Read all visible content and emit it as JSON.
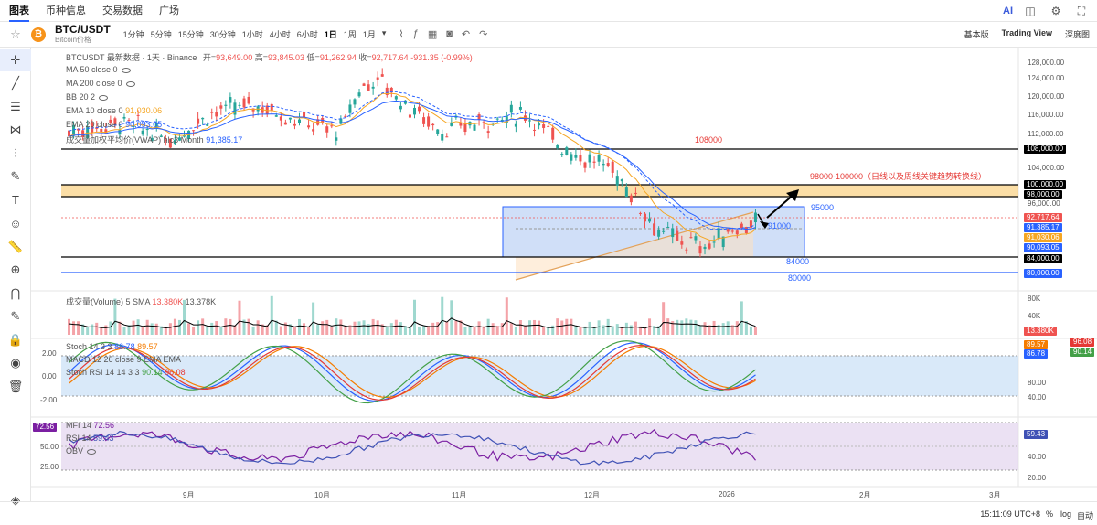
{
  "nav": {
    "tabs": [
      "图表",
      "币种信息",
      "交易数据",
      "广场"
    ],
    "ai_label": "AI"
  },
  "toolbar": {
    "coin_letter": "₿",
    "symbol": "BTC/USDT",
    "subtitle": "Bitcoin价格",
    "intervals": [
      "1分钟",
      "5分钟",
      "15分钟",
      "30分钟",
      "1小时",
      "4小时",
      "6小时",
      "1日",
      "1周",
      "1月"
    ],
    "active_interval": "1日",
    "view_options": [
      "基本版",
      "Trading View",
      "深度图"
    ],
    "active_view": "Trading View"
  },
  "legend": {
    "main": "BTCUSDT 最新数据 · 1天 · Binance",
    "open_label": "开=",
    "open": "93,649.00",
    "high_label": "高=",
    "high": "93,845.03",
    "low_label": "低=",
    "low": "91,262.94",
    "close_label": "收=",
    "close": "92,717.64",
    "change": "-931.35 (-0.99%)",
    "ma50": "MA 50 close 0",
    "ma200": "MA 200 close 0",
    "bb": "BB 20 2",
    "ema1": "EMA 10 close 0",
    "ema1_val": "91,030.06",
    "ema2": "EMA 20 close 0",
    "ema2_val": "90,093.05",
    "vwap": "成交量加权平均价(VWAP) hlc3 Month",
    "vwap_val": "91,385.17",
    "volume": "成交量(Volume) 5 SMA",
    "volume_v1": "13.380K",
    "volume_v2": "13.378K",
    "stoch": "Stoch 14 3 3",
    "stoch_v1": "86.78",
    "stoch_v2": "89.57",
    "macd": "MACD 12 26 close 9 EMA EMA",
    "stochrsi": "Stoch RSI 14 14 3 3",
    "stochrsi_v1": "90.14",
    "stochrsi_v2": "96.08",
    "mfi": "MFI 14",
    "mfi_val": "72.56",
    "rsi": "RSI 14",
    "rsi_val": "59.43",
    "obv": "OBV"
  },
  "annotations": {
    "l108": "108000",
    "l98": "98000-100000（日线以及周线关键趋势转换线）",
    "l95": "95000",
    "l91": "91000",
    "l84": "84000",
    "l80": "80000"
  },
  "price_axis": [
    "128,000.00",
    "124,000.00",
    "120,000.00",
    "116,000.00",
    "112,000.00",
    "108,000.00",
    "104,000.00",
    "100,000.00",
    "96,000.00",
    "92,000.00",
    "88,000.00",
    "84,000.00",
    "80,000.00"
  ],
  "price_tags": {
    "p108": "108,000.00",
    "p100": "100,000.00",
    "p98": "98,000.00",
    "close": "92,717.64",
    "vwap": "91,385.17",
    "ema10": "91,030.06",
    "ema20": "90,093.05",
    "p84": "84,000.00",
    "p80": "80,000.00"
  },
  "volume_axis": [
    "80K",
    "40K"
  ],
  "volume_tag": "13.380K",
  "osc_axis_left": [
    "2.00",
    "0.00",
    "-2.00"
  ],
  "osc_axis_right": [
    "80.00",
    "40.00",
    "20.00"
  ],
  "osc_tags": {
    "a": "89.57",
    "b": "86.78",
    "c": "96.08",
    "d": "90.14"
  },
  "mfi_axis_left": [
    "50.00",
    "25.00"
  ],
  "mfi_axis_right": [
    "40.00",
    "20.00"
  ],
  "mfi_tags": {
    "mfi": "72.56",
    "rsi": "59.43"
  },
  "time_axis": [
    "9月",
    "10月",
    "11月",
    "12月",
    "2026",
    "2月",
    "3月"
  ],
  "bottom": {
    "time": "15:11:09 UTC+8",
    "pct": "%",
    "log": "log",
    "auto": "自动"
  },
  "colors": {
    "bull": "#26a69a",
    "bear": "#ef5350",
    "ema10": "#f5a623",
    "ema20": "#2962ff",
    "zone": "#f9c86a",
    "blue_box": "#bcd2f5"
  }
}
